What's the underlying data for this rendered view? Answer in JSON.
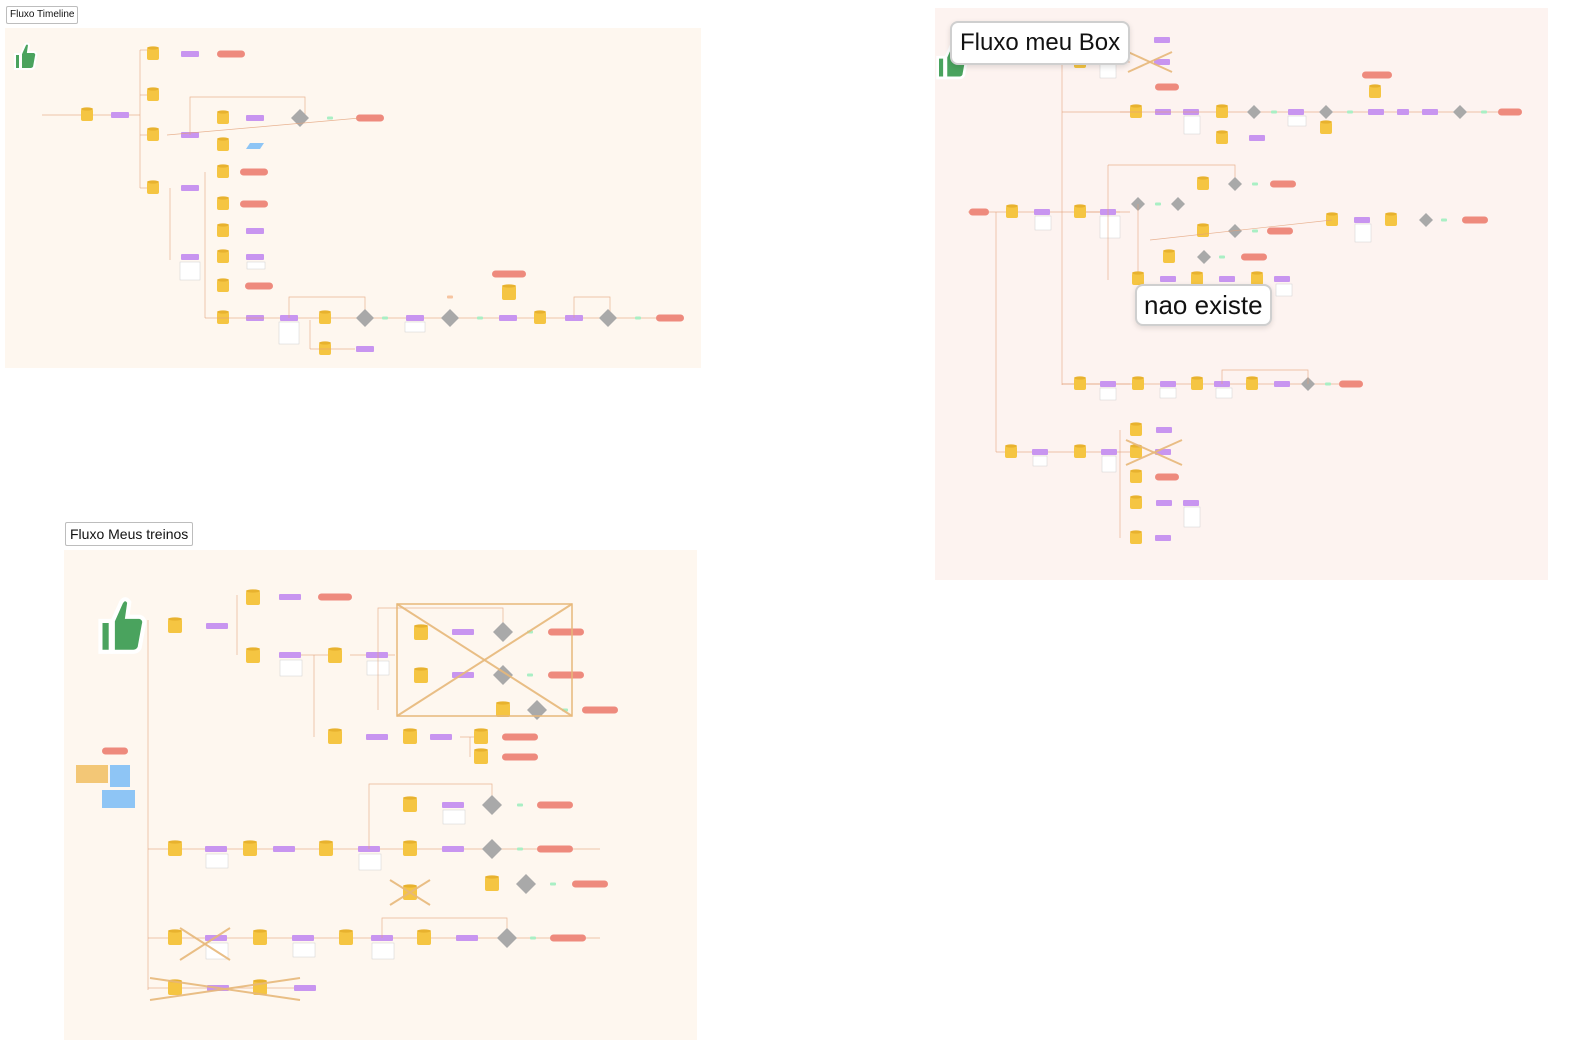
{
  "frames": {
    "timeline": {
      "title": "Fluxo Timeline"
    },
    "meus_treinos": {
      "title": "Fluxo Meus treinos"
    },
    "meu_box": {
      "title": "Fluxo meu Box"
    }
  },
  "annotations": {
    "nao_existe": "nao existe"
  },
  "icons": {
    "approval": "thumbs-up-icon"
  },
  "colors": {
    "database_node": "#f5c542",
    "screen_node": "#c895f0",
    "end_node": "#ee8a7d",
    "decision_node": "#a9a9a9",
    "yes_badge": "#a9efc4",
    "no_badge": "#f7c4a0",
    "connector": "#e3a27a",
    "frame_timeline": "#fef7ef",
    "frame_box": "#fdf3f0",
    "sticky_yellow": "#f3c776",
    "sticky_blue": "#8ec5f5",
    "thumb_green": "#4aa35e"
  }
}
